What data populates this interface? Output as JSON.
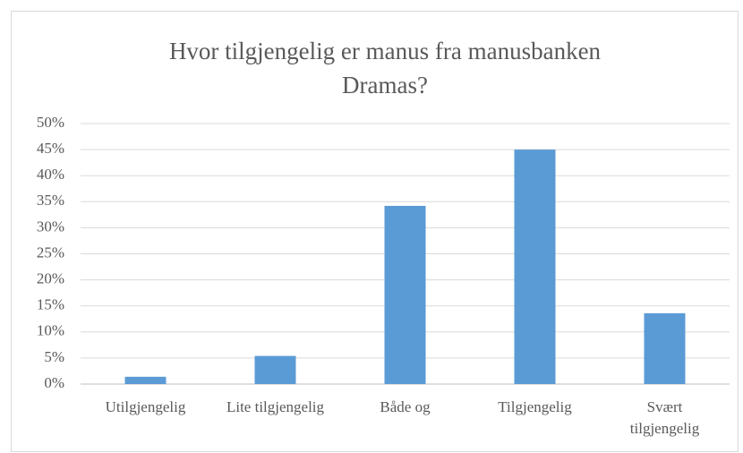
{
  "chart_data": {
    "type": "bar",
    "title": "Hvor tilgjengelig er manus fra manusbanken Dramas?",
    "categories": [
      "Utilgjengelig",
      "Lite tilgjengelig",
      "Både og",
      "Tilgjengelig",
      "Svært tilgjengelig"
    ],
    "values": [
      1.4,
      5.4,
      34.2,
      45,
      13.6
    ],
    "color": "#5b9bd5",
    "ylim": [
      0,
      50
    ],
    "yticks": [
      {
        "value": 0,
        "label": "0%"
      },
      {
        "value": 5,
        "label": "5%"
      },
      {
        "value": 10,
        "label": "10%"
      },
      {
        "value": 15,
        "label": "15%"
      },
      {
        "value": 20,
        "label": "20%"
      },
      {
        "value": 25,
        "label": "25%"
      },
      {
        "value": 30,
        "label": "30%"
      },
      {
        "value": 35,
        "label": "35%"
      },
      {
        "value": 40,
        "label": "40%"
      },
      {
        "value": 45,
        "label": "45%"
      },
      {
        "value": 50,
        "label": "50%"
      }
    ],
    "grid": true
  }
}
